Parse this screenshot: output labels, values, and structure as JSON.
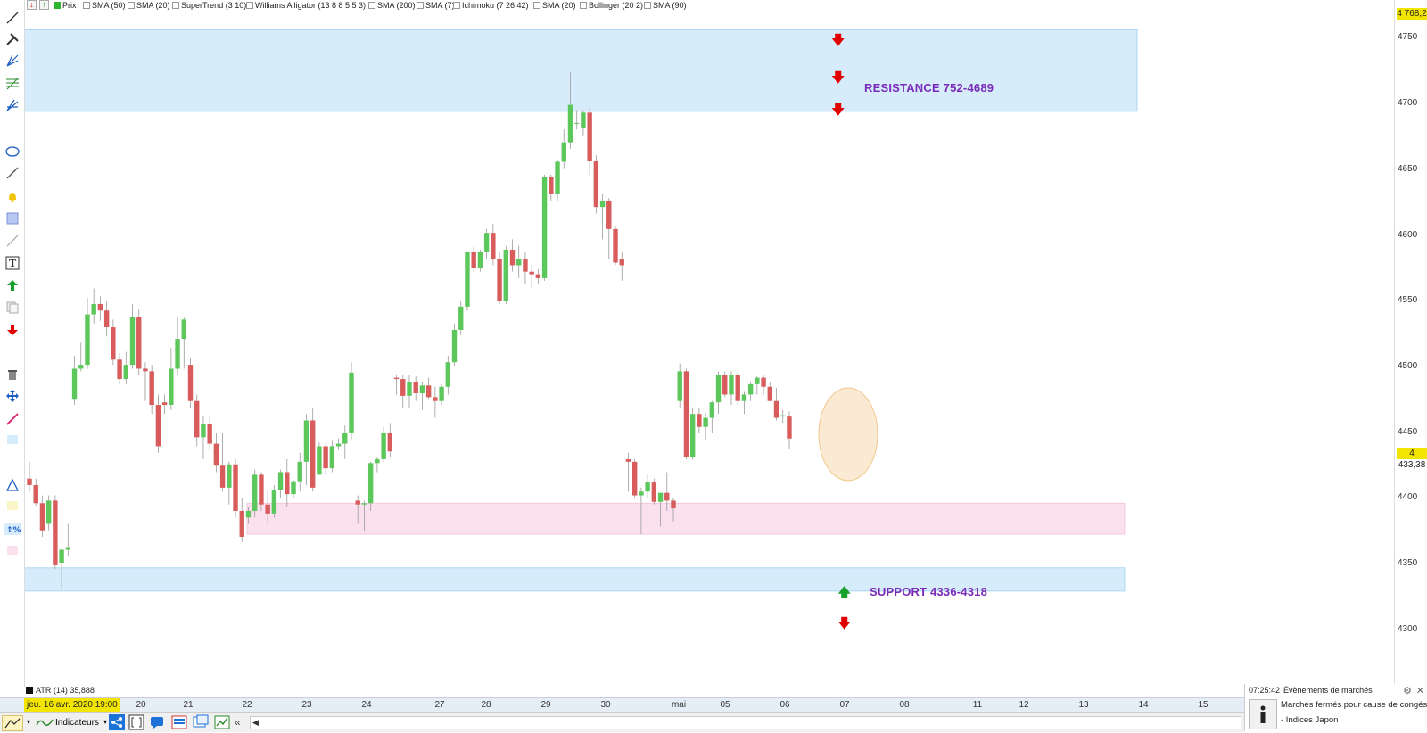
{
  "indicator_bar": {
    "items": [
      "Prix",
      "SMA (50)",
      "SMA (20)",
      "SuperTrend (3 10)",
      "Williams Alligator (13 8 8 5 5 3)",
      "SMA (200)",
      "SMA (7)",
      "Ichimoku (7 26 42)",
      "SMA (20)",
      "Bollinger (20 2)",
      "SMA (90)"
    ]
  },
  "price_axis": {
    "labels": [
      "4750",
      "4700",
      "4650",
      "4600",
      "4550",
      "4500",
      "4450",
      "4400",
      "4350",
      "4300"
    ],
    "top_value": "4 768,2",
    "current_value": "4 433,38"
  },
  "annotations": {
    "resistance_label": "RESISTANCE 752-4689",
    "support_label": "SUPPORT 4336-4318"
  },
  "time_axis": {
    "cursor_date": "jeu. 16 avr. 2020 19:00",
    "labels": [
      "20",
      "21",
      "22",
      "23",
      "24",
      "27",
      "28",
      "29",
      "30",
      "mai",
      "05",
      "06",
      "07",
      "08",
      "11",
      "12",
      "13",
      "14",
      "15"
    ]
  },
  "atr": {
    "label": "ATR (14) 35,888"
  },
  "bottom_bar": {
    "indicators_label": "Indicateurs"
  },
  "events_panel": {
    "time": "07:25:42",
    "title": "Évènements de marchés",
    "line1": "Marchés fermés pour cause de congés:",
    "line2": "- Indices Japon"
  },
  "colors": {
    "bull": "#5cc85c",
    "bear": "#d85c5c",
    "resistance_zone": "#d6ecfb",
    "support_zone": "#d6ecfb",
    "pink_zone": "#fbe0ee",
    "label": "#7a2ab8",
    "highlight": "#f9e3c4"
  },
  "chart_data": {
    "type": "candlestick",
    "ylim": [
      4280,
      4768.2
    ],
    "candles": [
      {
        "o": 4405,
        "h": 4418,
        "l": 4395,
        "c": 4400
      },
      {
        "o": 4400,
        "h": 4405,
        "l": 4384,
        "c": 4386
      },
      {
        "o": 4386,
        "h": 4392,
        "l": 4360,
        "c": 4365
      },
      {
        "o": 4370,
        "h": 4392,
        "l": 4365,
        "c": 4388
      },
      {
        "o": 4388,
        "h": 4392,
        "l": 4335,
        "c": 4338
      },
      {
        "o": 4340,
        "h": 4352,
        "l": 4320,
        "c": 4350
      },
      {
        "o": 4350,
        "h": 4370,
        "l": 4345,
        "c": 4352
      },
      {
        "o": 4466,
        "h": 4500,
        "l": 4462,
        "c": 4490
      },
      {
        "o": 4490,
        "h": 4510,
        "l": 4488,
        "c": 4493
      },
      {
        "o": 4493,
        "h": 4545,
        "l": 4490,
        "c": 4532
      },
      {
        "o": 4532,
        "h": 4552,
        "l": 4525,
        "c": 4540
      },
      {
        "o": 4540,
        "h": 4546,
        "l": 4527,
        "c": 4535
      },
      {
        "o": 4535,
        "h": 4542,
        "l": 4515,
        "c": 4522
      },
      {
        "o": 4522,
        "h": 4528,
        "l": 4493,
        "c": 4497
      },
      {
        "o": 4497,
        "h": 4502,
        "l": 4478,
        "c": 4482
      },
      {
        "o": 4482,
        "h": 4503,
        "l": 4478,
        "c": 4493
      },
      {
        "o": 4493,
        "h": 4540,
        "l": 4490,
        "c": 4530
      },
      {
        "o": 4530,
        "h": 4536,
        "l": 4485,
        "c": 4490
      },
      {
        "o": 4490,
        "h": 4495,
        "l": 4465,
        "c": 4488
      },
      {
        "o": 4488,
        "h": 4493,
        "l": 4455,
        "c": 4462
      },
      {
        "o": 4462,
        "h": 4470,
        "l": 4425,
        "c": 4430
      },
      {
        "o": 4464,
        "h": 4470,
        "l": 4455,
        "c": 4462
      },
      {
        "o": 4462,
        "h": 4506,
        "l": 4458,
        "c": 4490
      },
      {
        "o": 4490,
        "h": 4530,
        "l": 4485,
        "c": 4513
      },
      {
        "o": 4513,
        "h": 4530,
        "l": 4490,
        "c": 4528
      },
      {
        "o": 4493,
        "h": 4498,
        "l": 4460,
        "c": 4465
      },
      {
        "o": 4465,
        "h": 4470,
        "l": 4430,
        "c": 4437
      },
      {
        "o": 4437,
        "h": 4453,
        "l": 4420,
        "c": 4447
      },
      {
        "o": 4447,
        "h": 4454,
        "l": 4427,
        "c": 4432
      },
      {
        "o": 4432,
        "h": 4440,
        "l": 4410,
        "c": 4415
      },
      {
        "o": 4415,
        "h": 4440,
        "l": 4395,
        "c": 4398
      },
      {
        "o": 4398,
        "h": 4418,
        "l": 4385,
        "c": 4416
      },
      {
        "o": 4416,
        "h": 4420,
        "l": 4375,
        "c": 4380
      },
      {
        "o": 4380,
        "h": 4390,
        "l": 4356,
        "c": 4360
      },
      {
        "o": 4375,
        "h": 4383,
        "l": 4370,
        "c": 4380
      },
      {
        "o": 4380,
        "h": 4412,
        "l": 4375,
        "c": 4408
      },
      {
        "o": 4408,
        "h": 4410,
        "l": 4380,
        "c": 4385
      },
      {
        "o": 4385,
        "h": 4395,
        "l": 4370,
        "c": 4378
      },
      {
        "o": 4378,
        "h": 4400,
        "l": 4375,
        "c": 4396
      },
      {
        "o": 4396,
        "h": 4412,
        "l": 4390,
        "c": 4410
      },
      {
        "o": 4410,
        "h": 4420,
        "l": 4383,
        "c": 4393
      },
      {
        "o": 4393,
        "h": 4404,
        "l": 4390,
        "c": 4403
      },
      {
        "o": 4403,
        "h": 4425,
        "l": 4395,
        "c": 4418
      },
      {
        "o": 4418,
        "h": 4455,
        "l": 4400,
        "c": 4450
      },
      {
        "o": 4450,
        "h": 4460,
        "l": 4395,
        "c": 4398
      },
      {
        "o": 4408,
        "h": 4433,
        "l": 4408,
        "c": 4430
      },
      {
        "o": 4430,
        "h": 4432,
        "l": 4408,
        "c": 4413
      },
      {
        "o": 4413,
        "h": 4435,
        "l": 4410,
        "c": 4430
      },
      {
        "o": 4430,
        "h": 4436,
        "l": 4427,
        "c": 4432
      },
      {
        "o": 4432,
        "h": 4446,
        "l": 4420,
        "c": 4440
      },
      {
        "o": 4440,
        "h": 4495,
        "l": 4435,
        "c": 4487
      },
      {
        "o": 4388,
        "h": 4392,
        "l": 4370,
        "c": 4385
      },
      {
        "o": 4385,
        "h": 4388,
        "l": 4364,
        "c": 4386
      },
      {
        "o": 4386,
        "h": 4418,
        "l": 4380,
        "c": 4417
      },
      {
        "o": 4417,
        "h": 4422,
        "l": 4410,
        "c": 4420
      },
      {
        "o": 4420,
        "h": 4445,
        "l": 4418,
        "c": 4440
      },
      {
        "o": 4440,
        "h": 4448,
        "l": 4422,
        "c": 4426
      },
      {
        "o": 4483,
        "h": 4485,
        "l": 4470,
        "c": 4482
      },
      {
        "o": 4482,
        "h": 4485,
        "l": 4460,
        "c": 4469
      },
      {
        "o": 4469,
        "h": 4485,
        "l": 4460,
        "c": 4480
      },
      {
        "o": 4480,
        "h": 4484,
        "l": 4465,
        "c": 4471
      },
      {
        "o": 4471,
        "h": 4480,
        "l": 4458,
        "c": 4477
      },
      {
        "o": 4477,
        "h": 4483,
        "l": 4466,
        "c": 4468
      },
      {
        "o": 4468,
        "h": 4476,
        "l": 4452,
        "c": 4465
      },
      {
        "o": 4465,
        "h": 4478,
        "l": 4462,
        "c": 4476
      },
      {
        "o": 4476,
        "h": 4500,
        "l": 4470,
        "c": 4495
      },
      {
        "o": 4495,
        "h": 4525,
        "l": 4492,
        "c": 4520
      },
      {
        "o": 4520,
        "h": 4542,
        "l": 4516,
        "c": 4538
      },
      {
        "o": 4538,
        "h": 4580,
        "l": 4535,
        "c": 4580
      },
      {
        "o": 4580,
        "h": 4585,
        "l": 4565,
        "c": 4568
      },
      {
        "o": 4568,
        "h": 4582,
        "l": 4565,
        "c": 4580
      },
      {
        "o": 4580,
        "h": 4598,
        "l": 4575,
        "c": 4595
      },
      {
        "o": 4595,
        "h": 4602,
        "l": 4570,
        "c": 4575
      },
      {
        "o": 4575,
        "h": 4580,
        "l": 4540,
        "c": 4542
      },
      {
        "o": 4542,
        "h": 4585,
        "l": 4540,
        "c": 4582
      },
      {
        "o": 4582,
        "h": 4590,
        "l": 4565,
        "c": 4570
      },
      {
        "o": 4570,
        "h": 4585,
        "l": 4560,
        "c": 4575
      },
      {
        "o": 4575,
        "h": 4580,
        "l": 4555,
        "c": 4565
      },
      {
        "o": 4565,
        "h": 4570,
        "l": 4552,
        "c": 4563
      },
      {
        "o": 4563,
        "h": 4567,
        "l": 4555,
        "c": 4560
      },
      {
        "o": 4560,
        "h": 4640,
        "l": 4558,
        "c": 4638
      },
      {
        "o": 4638,
        "h": 4640,
        "l": 4620,
        "c": 4625
      },
      {
        "o": 4625,
        "h": 4652,
        "l": 4620,
        "c": 4650
      },
      {
        "o": 4650,
        "h": 4675,
        "l": 4645,
        "c": 4665
      },
      {
        "o": 4665,
        "h": 4719,
        "l": 4660,
        "c": 4694
      },
      {
        "o": 4680,
        "h": 4690,
        "l": 4675,
        "c": 4680
      },
      {
        "o": 4676,
        "h": 4690,
        "l": 4670,
        "c": 4688
      },
      {
        "o": 4688,
        "h": 4692,
        "l": 4640,
        "c": 4651
      },
      {
        "o": 4651,
        "h": 4655,
        "l": 4610,
        "c": 4615
      },
      {
        "o": 4615,
        "h": 4625,
        "l": 4590,
        "c": 4620
      },
      {
        "o": 4620,
        "h": 4622,
        "l": 4575,
        "c": 4598
      },
      {
        "o": 4598,
        "h": 4600,
        "l": 4570,
        "c": 4572
      },
      {
        "o": 4575,
        "h": 4580,
        "l": 4558,
        "c": 4570
      },
      {
        "o": 4420,
        "h": 4425,
        "l": 4395,
        "c": 4418
      },
      {
        "o": 4418,
        "h": 4420,
        "l": 4390,
        "c": 4392
      },
      {
        "o": 4392,
        "h": 4398,
        "l": 4362,
        "c": 4395
      },
      {
        "o": 4395,
        "h": 4408,
        "l": 4390,
        "c": 4402
      },
      {
        "o": 4402,
        "h": 4405,
        "l": 4385,
        "c": 4387
      },
      {
        "o": 4387,
        "h": 4390,
        "l": 4368,
        "c": 4394
      },
      {
        "o": 4394,
        "h": 4410,
        "l": 4380,
        "c": 4388
      },
      {
        "o": 4388,
        "h": 4390,
        "l": 4372,
        "c": 4382
      },
      {
        "o": 4465,
        "h": 4494,
        "l": 4460,
        "c": 4488
      },
      {
        "o": 4488,
        "h": 4490,
        "l": 4420,
        "c": 4422
      },
      {
        "o": 4422,
        "h": 4460,
        "l": 4420,
        "c": 4455
      },
      {
        "o": 4455,
        "h": 4460,
        "l": 4440,
        "c": 4445
      },
      {
        "o": 4445,
        "h": 4456,
        "l": 4435,
        "c": 4452
      },
      {
        "o": 4452,
        "h": 4465,
        "l": 4440,
        "c": 4464
      },
      {
        "o": 4464,
        "h": 4488,
        "l": 4455,
        "c": 4485
      },
      {
        "o": 4485,
        "h": 4488,
        "l": 4468,
        "c": 4470
      },
      {
        "o": 4470,
        "h": 4488,
        "l": 4462,
        "c": 4485
      },
      {
        "o": 4485,
        "h": 4488,
        "l": 4462,
        "c": 4465
      },
      {
        "o": 4465,
        "h": 4472,
        "l": 4455,
        "c": 4470
      },
      {
        "o": 4470,
        "h": 4480,
        "l": 4465,
        "c": 4478
      },
      {
        "o": 4478,
        "h": 4484,
        "l": 4470,
        "c": 4483
      },
      {
        "o": 4483,
        "h": 4485,
        "l": 4470,
        "c": 4476
      },
      {
        "o": 4476,
        "h": 4480,
        "l": 4465,
        "c": 4465
      },
      {
        "o": 4465,
        "h": 4475,
        "l": 4450,
        "c": 4452
      },
      {
        "o": 4453,
        "h": 4458,
        "l": 4448,
        "c": 4454
      },
      {
        "o": 4453,
        "h": 4457,
        "l": 4428,
        "c": 4436
      }
    ],
    "zones": [
      {
        "name": "resistance",
        "from": 4689,
        "to": 4752
      },
      {
        "name": "mid",
        "from": 4362,
        "to": 4386
      },
      {
        "name": "support",
        "from": 4318,
        "to": 4336
      }
    ]
  }
}
